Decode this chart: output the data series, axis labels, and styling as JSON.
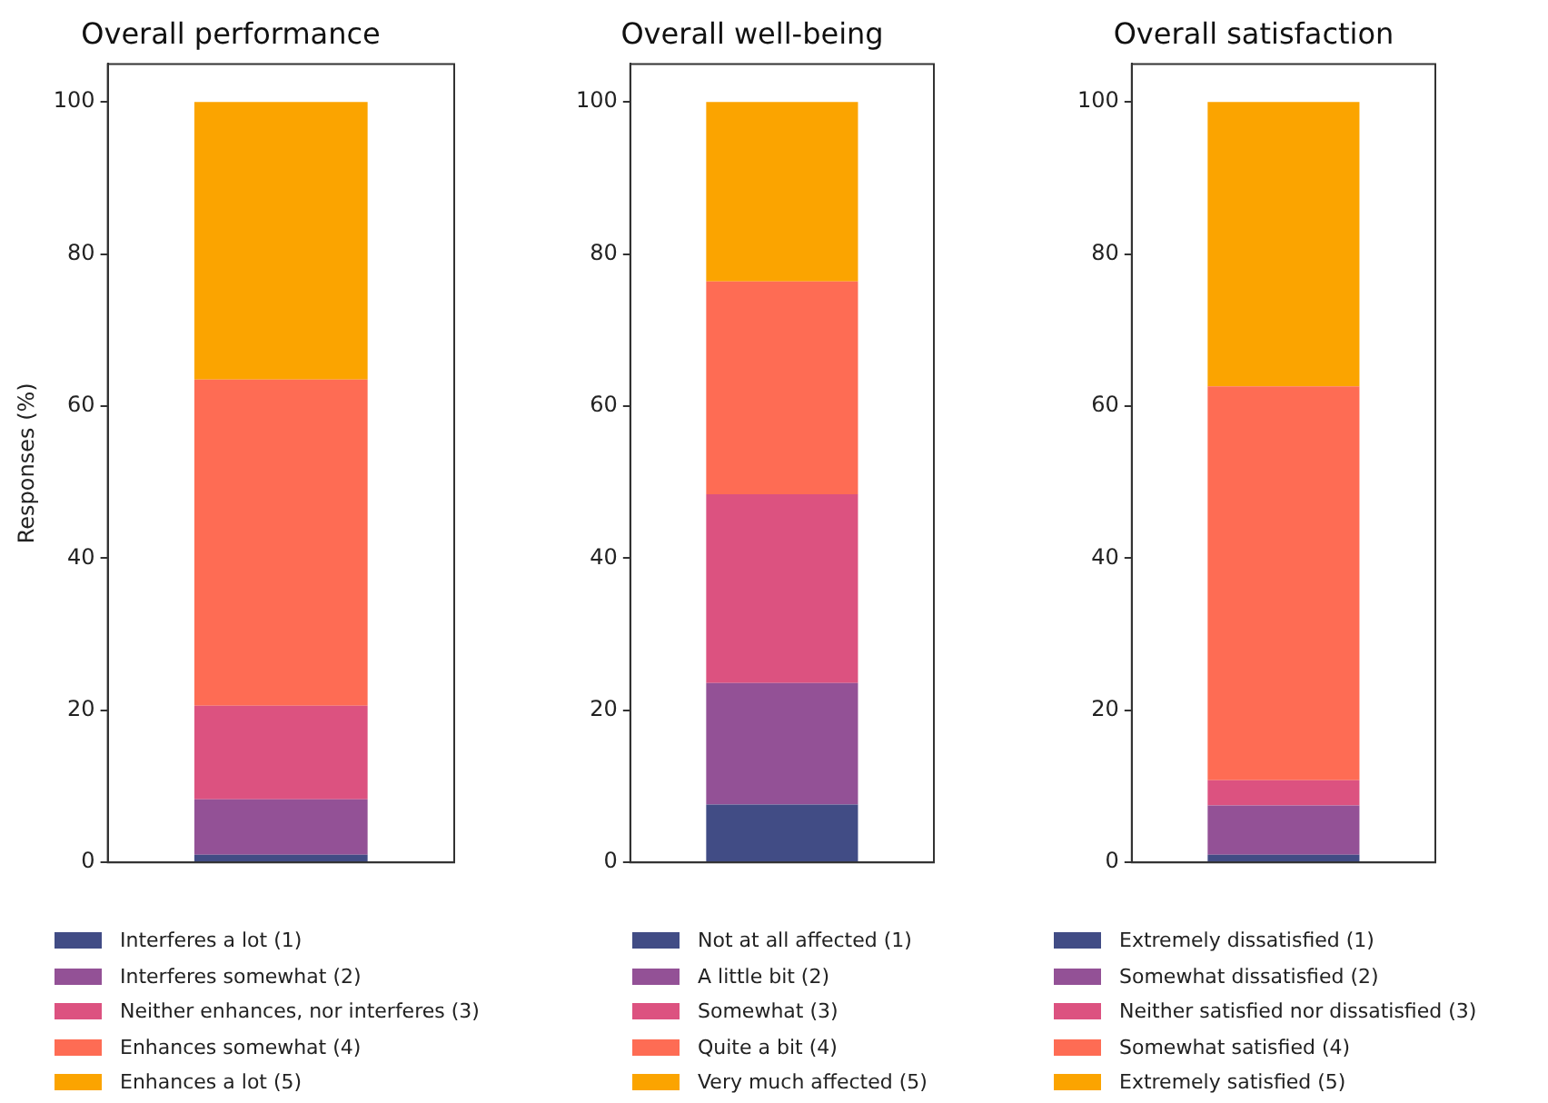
{
  "chart_data": [
    {
      "type": "bar",
      "title": "Overall performance",
      "ylabel": "Responses (%)",
      "categories": [
        null
      ],
      "stacked": true,
      "ylim": [
        0,
        105
      ],
      "yticks": [
        0,
        20,
        40,
        60,
        80,
        100
      ],
      "grid": false,
      "legend": "bottom",
      "series": [
        {
          "name": "Interferes a lot (1)",
          "color": "#414c85",
          "values": [
            1
          ]
        },
        {
          "name": "Interferes somewhat (2)",
          "color": "#935196",
          "values": [
            7.3
          ]
        },
        {
          "name": "Neither enhances, nor interferes (3)",
          "color": "#dc5280",
          "values": [
            12.3
          ]
        },
        {
          "name": "Enhances somewhat (4)",
          "color": "#fe6c54",
          "values": [
            42.9
          ]
        },
        {
          "name": "Enhances a lot (5)",
          "color": "#fba400",
          "values": [
            36.5
          ]
        }
      ]
    },
    {
      "type": "bar",
      "title": "Overall well-being",
      "categories": [
        null
      ],
      "stacked": true,
      "ylim": [
        0,
        105
      ],
      "yticks": [
        0,
        20,
        40,
        60,
        80,
        100
      ],
      "grid": false,
      "legend": "bottom",
      "series": [
        {
          "name": "Not at all affected (1)",
          "color": "#414c85",
          "values": [
            7.6
          ]
        },
        {
          "name": "A little bit (2)",
          "color": "#935196",
          "values": [
            16
          ]
        },
        {
          "name": "Somewhat (3)",
          "color": "#dc5280",
          "values": [
            24.8
          ]
        },
        {
          "name": "Quite a bit (4)",
          "color": "#fe6c54",
          "values": [
            28
          ]
        },
        {
          "name": "Very much affected (5)",
          "color": "#fba400",
          "values": [
            23.6
          ]
        }
      ]
    },
    {
      "type": "bar",
      "title": "Overall satisfaction",
      "categories": [
        null
      ],
      "stacked": true,
      "ylim": [
        0,
        105
      ],
      "yticks": [
        0,
        20,
        40,
        60,
        80,
        100
      ],
      "grid": false,
      "legend": "bottom",
      "series": [
        {
          "name": "Extremely dissatisfied (1)",
          "color": "#414c85",
          "values": [
            1
          ]
        },
        {
          "name": "Somewhat dissatisfied (2)",
          "color": "#935196",
          "values": [
            6.5
          ]
        },
        {
          "name": "Neither satisfied nor dissatisfied (3)",
          "color": "#dc5280",
          "values": [
            3.3
          ]
        },
        {
          "name": "Somewhat satisfied (4)",
          "color": "#fe6c54",
          "values": [
            51.8
          ]
        },
        {
          "name": "Extremely satisfied (5)",
          "color": "#fba400",
          "values": [
            37.4
          ]
        }
      ]
    }
  ]
}
